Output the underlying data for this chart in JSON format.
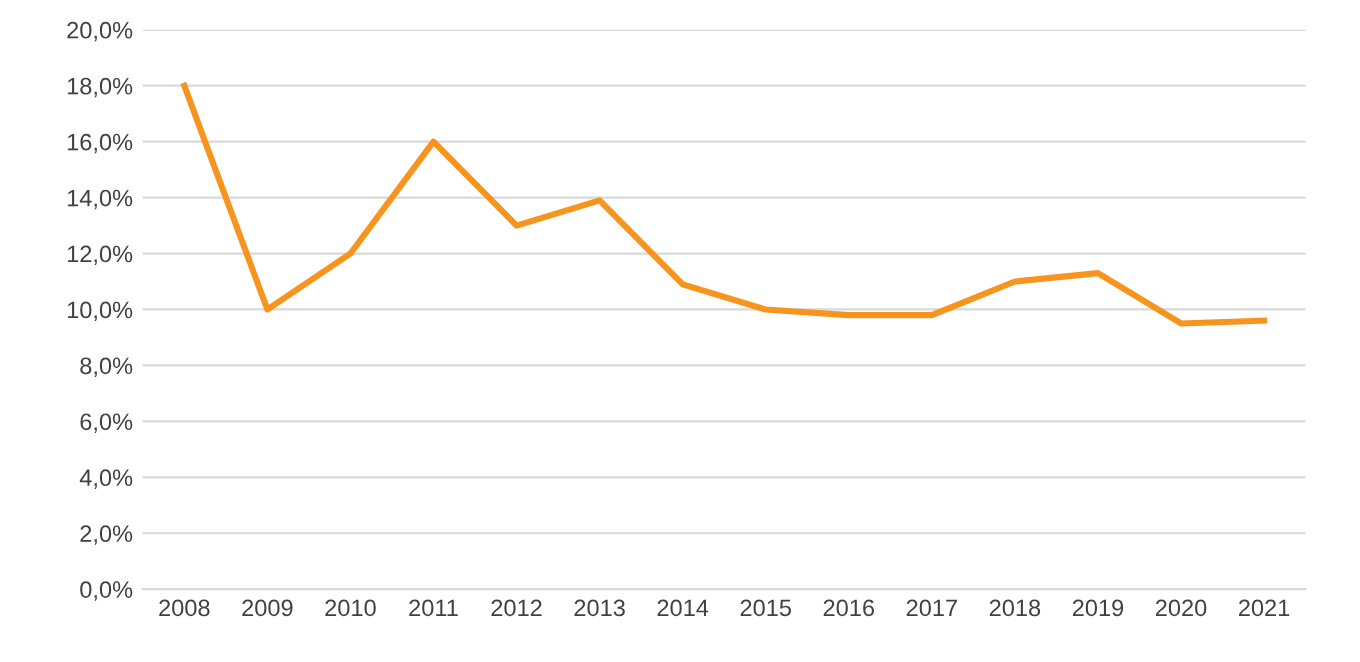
{
  "chart_data": {
    "type": "line",
    "categories": [
      "2008",
      "2009",
      "2010",
      "2011",
      "2012",
      "2013",
      "2014",
      "2015",
      "2016",
      "2017",
      "2018",
      "2019",
      "2020",
      "2021"
    ],
    "series": [
      {
        "color": "#f7941d",
        "values": [
          18.0,
          10.0,
          12.0,
          16.0,
          13.0,
          13.9,
          10.9,
          10.0,
          9.8,
          9.8,
          11.0,
          11.3,
          9.5,
          9.6
        ]
      }
    ],
    "ylim": [
      0,
      20
    ],
    "yticks": [
      {
        "value": 0,
        "label": "0,0%"
      },
      {
        "value": 2,
        "label": "2,0%"
      },
      {
        "value": 4,
        "label": "4,0%"
      },
      {
        "value": 6,
        "label": "6,0%"
      },
      {
        "value": 8,
        "label": "8,0%"
      },
      {
        "value": 10,
        "label": "10,0%"
      },
      {
        "value": 12,
        "label": "12,0%"
      },
      {
        "value": 14,
        "label": "14,0%"
      },
      {
        "value": 16,
        "label": "16,0%"
      },
      {
        "value": 18,
        "label": "18,0%"
      },
      {
        "value": 20,
        "label": "20,0%"
      }
    ],
    "grid": "y",
    "legend": false,
    "marker": "none",
    "line_style": "solid"
  }
}
